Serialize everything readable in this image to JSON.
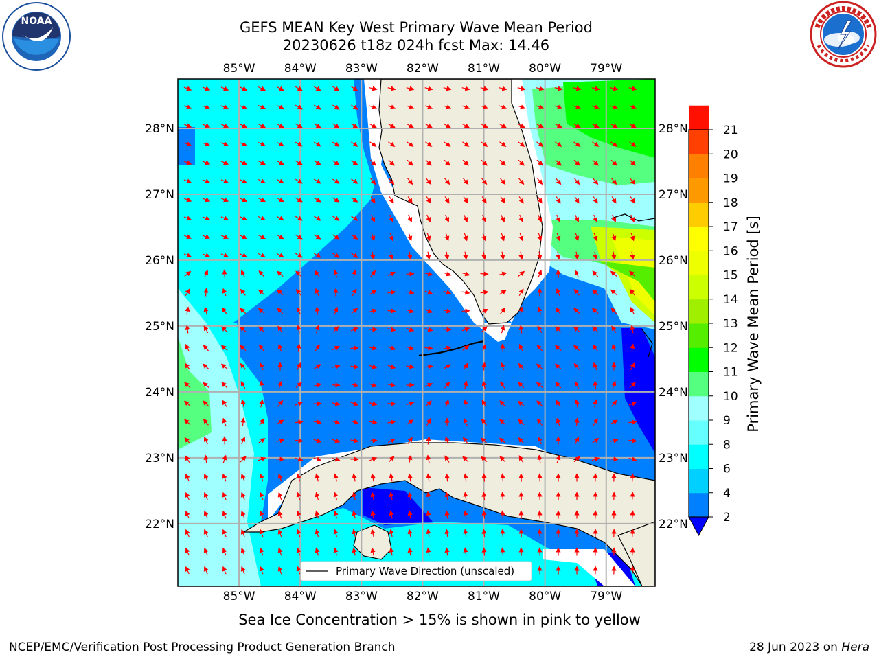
{
  "header": {
    "title_line1": "GEFS MEAN Key West Primary Wave Mean Period",
    "title_line2": "20230626 t18z 024h fcst   Max: 14.46"
  },
  "logos": {
    "left": {
      "name": "noaa-logo",
      "text": "NOAA",
      "ring_text": "NATIONAL OCEANIC AND ATMOSPHERIC ADMINISTRATION · U.S. DEPARTMENT OF COMMERCE"
    },
    "right": {
      "name": "nws-logo",
      "ring_text": "NATIONAL WEATHER SERVICE"
    }
  },
  "map": {
    "lon_ticks": [
      "85°W",
      "84°W",
      "83°W",
      "82°W",
      "81°W",
      "80°W",
      "79°W"
    ],
    "lat_ticks": [
      "28°N",
      "27°N",
      "26°N",
      "25°N",
      "24°N",
      "23°N",
      "22°N"
    ],
    "lon_values": [
      -85,
      -84,
      -83,
      -82,
      -81,
      -80,
      -79
    ],
    "lat_values": [
      28,
      27,
      26,
      25,
      24,
      23,
      22
    ],
    "extent": {
      "lon_min": -86.0,
      "lon_max": -78.2,
      "lat_min": 21.05,
      "lat_max": 28.75
    },
    "legend_label": "Primary Wave Direction (unscaled)",
    "land_color": "#efedde",
    "arrow_color": "#ff0000",
    "grid_color": "#b0b0b0"
  },
  "colorbar": {
    "label": "Primary Wave Mean Period [s]",
    "ticks": [
      "2",
      "4",
      "6",
      "8",
      "9",
      "10",
      "11",
      "12",
      "13",
      "14",
      "15",
      "16",
      "17",
      "18",
      "19",
      "20",
      "21"
    ],
    "colors": [
      "#0080ff",
      "#00d0ff",
      "#00ffff",
      "#66ffff",
      "#a0ffff",
      "#55ff80",
      "#00ff00",
      "#55ee00",
      "#a0ee00",
      "#ccff00",
      "#eeff00",
      "#ffff00",
      "#ffcc00",
      "#ff9900",
      "#ff8000",
      "#ff4000",
      "#ff1000"
    ],
    "extend_color": "#0000ff"
  },
  "footer": {
    "ice_note": "Sea Ice Concentration > 15% is shown in pink to yellow",
    "left": "NCEP/EMC/Verification Post Processing Product Generation Branch",
    "right_date": "28 Jun 2023 on ",
    "right_host": "Hera"
  }
}
